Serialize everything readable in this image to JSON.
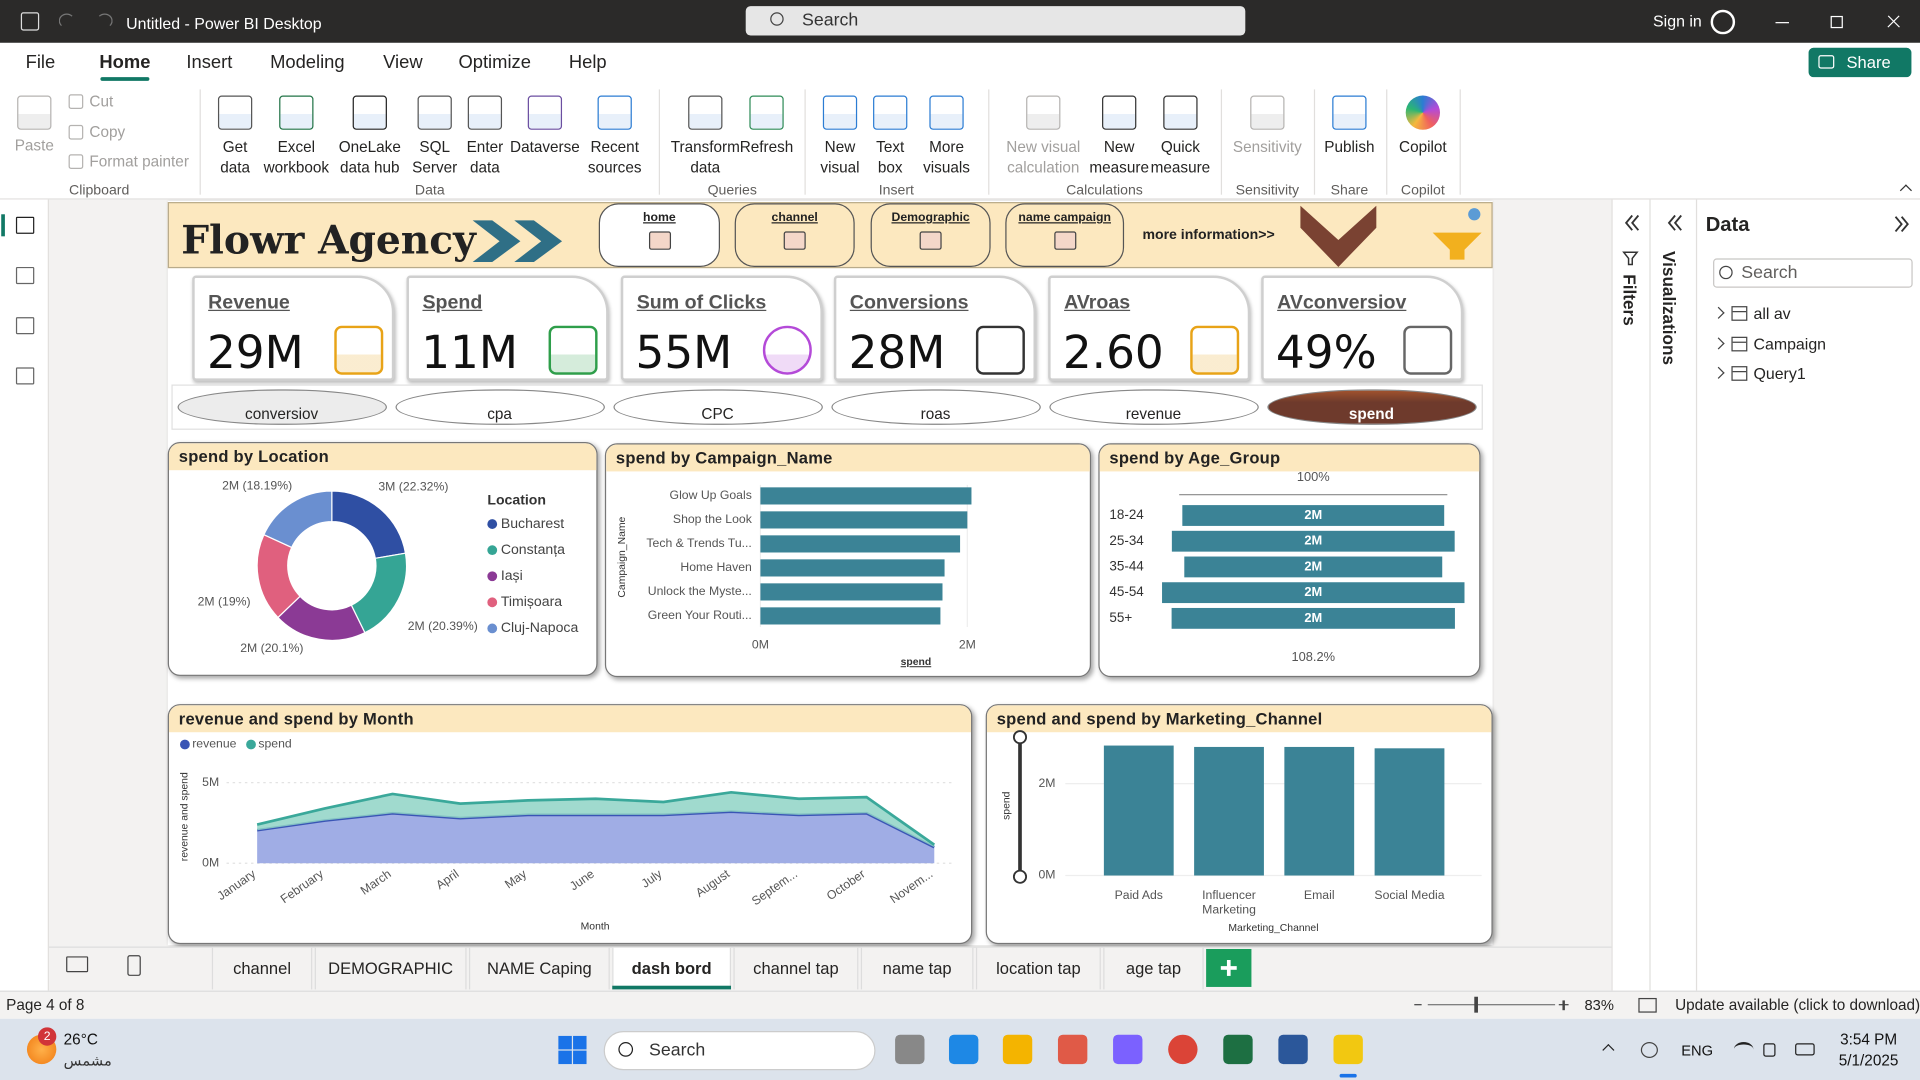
{
  "window": {
    "title": "Untitled - Power BI Desktop",
    "search": "Search",
    "sign_in": "Sign in"
  },
  "menu": {
    "tabs": [
      "File",
      "Home",
      "Insert",
      "Modeling",
      "View",
      "Optimize",
      "Help"
    ],
    "active_tab": "Home",
    "share": "Share"
  },
  "ribbon": [
    {
      "group": "Clipboard",
      "items": [
        "Paste",
        "Cut",
        "Copy",
        "Format painter"
      ]
    },
    {
      "group": "Data",
      "items": [
        "Get data",
        "Excel workbook",
        "OneLake data hub",
        "SQL Server",
        "Enter data",
        "Dataverse",
        "Recent sources"
      ]
    },
    {
      "group": "Queries",
      "items": [
        "Transform data",
        "Refresh"
      ]
    },
    {
      "group": "Insert",
      "items": [
        "New visual",
        "Text box",
        "More visuals"
      ]
    },
    {
      "group": "Calculations",
      "items": [
        "New visual calculation",
        "New measure",
        "Quick measure"
      ]
    },
    {
      "group": "Sensitivity",
      "items": [
        "Sensitivity"
      ]
    },
    {
      "group": "Share",
      "items": [
        "Publish"
      ]
    },
    {
      "group": "Copilot",
      "items": [
        "Copilot"
      ]
    }
  ],
  "report": {
    "brand": "Flowr Agency",
    "nav": [
      "home",
      "channel",
      "Demographic",
      "name campaign"
    ],
    "more_info": "more information>>",
    "kpis": [
      {
        "label": "Revenue",
        "value": "29M"
      },
      {
        "label": "Spend",
        "value": "11M"
      },
      {
        "label": "Sum of Clicks",
        "value": "55M"
      },
      {
        "label": "Conversions",
        "value": "28M"
      },
      {
        "label": "AVroas",
        "value": "2.60"
      },
      {
        "label": "AVconversiov",
        "value": "49%"
      }
    ],
    "measures": [
      "conversiov",
      "cpa",
      "CPC",
      "roas",
      "revenue",
      "spend"
    ],
    "selected_measure": "spend"
  },
  "chart_data": [
    {
      "type": "donut",
      "title": "spend by Location",
      "legend_title": "Location",
      "legend": "right",
      "categories": [
        "Bucharest",
        "Constanța",
        "Iași",
        "Timișoara",
        "Cluj-Napoca"
      ],
      "values": [
        22.32,
        20.39,
        20.1,
        19,
        18.19
      ],
      "value_labels": [
        "3M (22.32%)",
        "2M (20.39%)",
        "2M (20.1%)",
        "2M (19%)",
        "2M (18.19%)"
      ],
      "colors": [
        "#2f4fa3",
        "#35a595",
        "#8b3a95",
        "#e0607e",
        "#6a8fd0"
      ]
    },
    {
      "type": "hbar",
      "title": "spend by Campaign_Name",
      "x_label": "spend",
      "y_label": "Campaign_Name",
      "categories": [
        "Glow Up Goals",
        "Shop the Look",
        "Tech & Trends Tu...",
        "Home Haven",
        "Unlock the Myste...",
        "Green Your Routi..."
      ],
      "values": [
        2040000,
        2000000,
        1930000,
        1780000,
        1760000,
        1740000
      ],
      "color": "#3b8396",
      "xlim": [
        0,
        2450000
      ],
      "xticks": [
        {
          "value": 0,
          "label": "0M"
        },
        {
          "value": 2000000,
          "label": "2M"
        }
      ]
    },
    {
      "type": "funnel",
      "title": "spend by Age_Group",
      "categories": [
        "18-24",
        "25-34",
        "35-44",
        "45-54",
        "55+"
      ],
      "values": [
        2000000,
        2160000,
        1970000,
        2310000,
        2164000
      ],
      "value_labels": [
        "2M",
        "2M",
        "2M",
        "2M",
        "2M"
      ],
      "color": "#3b8396",
      "top_label": "100%",
      "bottom_label": "108.2%"
    },
    {
      "type": "area",
      "stacked": true,
      "title": "revenue and spend by Month",
      "x_label": "Month",
      "y_label": "revenue and spend",
      "legend": "top-left",
      "categories": [
        "January",
        "February",
        "March",
        "April",
        "May",
        "June",
        "July",
        "August",
        "Septem...",
        "October",
        "Novem..."
      ],
      "series": [
        {
          "name": "revenue",
          "color": "#3a55b5",
          "values": [
            2050000,
            2650000,
            3100000,
            2800000,
            3000000,
            3000000,
            3000000,
            3200000,
            3000000,
            3100000,
            1000000
          ]
        },
        {
          "name": "spend",
          "color": "#3aa89a",
          "values": [
            350000,
            750000,
            1200000,
            900000,
            900000,
            1000000,
            800000,
            1200000,
            1000000,
            1000000,
            150000
          ]
        }
      ],
      "ylim": [
        0,
        6000000
      ],
      "yticks": [
        {
          "value": 0,
          "label": "0M"
        },
        {
          "value": 5000000,
          "label": "5M"
        }
      ]
    },
    {
      "type": "column",
      "title": "spend and spend by Marketing_Channel",
      "x_label": "Marketing_Channel",
      "y_label": "spend",
      "categories": [
        "Paid Ads",
        "Influencer Marketing",
        "Email",
        "Social Media"
      ],
      "values": [
        2830000,
        2800000,
        2800000,
        2770000
      ],
      "color": "#3b8396",
      "ylim": [
        0,
        3000000
      ],
      "yticks": [
        {
          "value": 0,
          "label": "0M"
        },
        {
          "value": 2000000,
          "label": "2M"
        }
      ]
    }
  ],
  "panes": {
    "filters": "Filters",
    "visualizations": "Visualizations",
    "data": {
      "title": "Data",
      "search": "Search",
      "tables": [
        "all av",
        "Campaign",
        "Query1"
      ]
    }
  },
  "pages": {
    "tabs": [
      "channel",
      "DEMOGRAPHIC",
      "NAME Caping",
      "dash bord",
      "channel tap",
      "name tap",
      "location tap",
      "age tap"
    ],
    "active_tab": "dash bord"
  },
  "status": {
    "page": "Page 4 of 8",
    "zoom": "83%",
    "update": "Update available (click to download)"
  },
  "taskbar": {
    "weather_badge": "2",
    "temperature": "26°C",
    "condition": "مشمس",
    "search": "Search",
    "language": "ENG",
    "time": "3:54 PM",
    "date": "5/1/2025"
  }
}
